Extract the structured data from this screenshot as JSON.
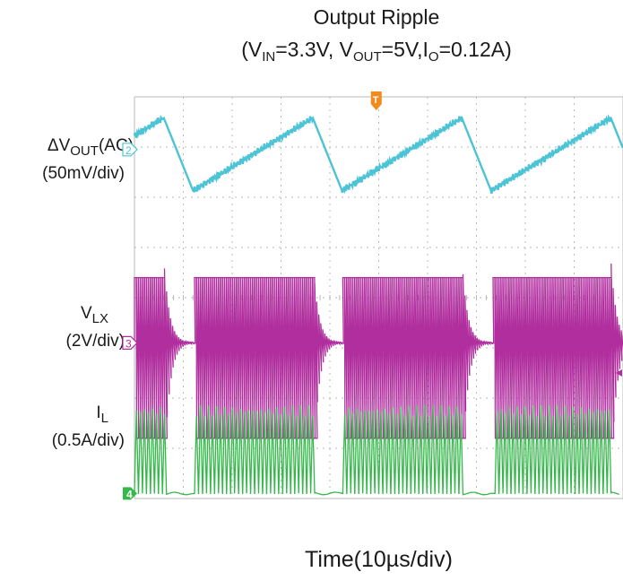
{
  "title": {
    "line1": "Output Ripple",
    "open": "(V",
    "vin_sub": "IN",
    "vin_val": "=3.3V, V",
    "vout_sub": "OUT",
    "vout_val": "=5V,I",
    "io_sub": "O",
    "io_val": "=0.12A)"
  },
  "channels": [
    {
      "id": "2",
      "name_prefix": "ΔV",
      "name_sub": "OUT",
      "name_suffix": "(AC)",
      "scale": "(50mV/div)",
      "color": "#4dc3d6"
    },
    {
      "id": "3",
      "name_prefix": "V",
      "name_sub": "LX",
      "name_suffix": "",
      "scale": "(2V/div)",
      "color": "#b02e9e"
    },
    {
      "id": "4",
      "name_prefix": "I",
      "name_sub": "L",
      "name_suffix": "",
      "scale": "(0.5A/div)",
      "color": "#34b84a"
    }
  ],
  "trigger_marker": "T",
  "xlabel": "Time(10µs/div)",
  "chart_data": {
    "type": "line",
    "title": "Output Ripple",
    "subtitle": "(VIN=3.3V, VOUT=5V,IO=0.12A)",
    "xlabel": "Time(10µs/div)",
    "x_divisions": 10,
    "y_divisions": 8,
    "x_per_div_us": 10,
    "grid": true,
    "burst_period_div": 3.05,
    "burst_on_div": 2.45,
    "series": [
      {
        "name": "ΔVOUT(AC)",
        "scale_per_div": "50mV",
        "ripple_pp_div": 1.45,
        "ramp_minima_div": [
          1.2,
          4.25,
          7.3
        ],
        "ramp_peaks_div": [
          3.65,
          6.7,
          9.75
        ]
      },
      {
        "name": "VLX",
        "scale_per_div": "2V",
        "swing_div": 3.2
      },
      {
        "name": "IL",
        "scale_per_div": "0.5A",
        "peak_div": 1.65
      }
    ]
  }
}
